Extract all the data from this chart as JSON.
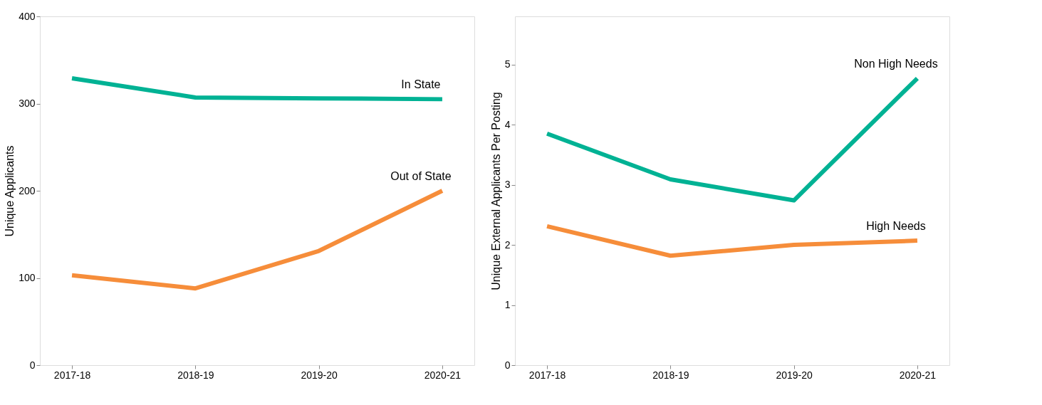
{
  "chart_data": [
    {
      "type": "line",
      "ylabel": "Unique Applicants",
      "categories": [
        "2017-18",
        "2018-19",
        "2019-20",
        "2020-21"
      ],
      "ylim": [
        0,
        400
      ],
      "yticks": [
        0,
        100,
        200,
        300,
        400
      ],
      "grid": false,
      "legend": false,
      "marker": "none",
      "line_style": "solid",
      "series": [
        {
          "name": "In State",
          "color": "#00b294",
          "values": [
            329,
            307,
            306,
            305
          ]
        },
        {
          "name": "Out of State",
          "color": "#f68d3a",
          "values": [
            103,
            88,
            131,
            200
          ]
        }
      ]
    },
    {
      "type": "line",
      "ylabel": "Unique External Applicants Per Posting",
      "categories": [
        "2017-18",
        "2018-19",
        "2019-20",
        "2020-21"
      ],
      "ylim": [
        0,
        5.8
      ],
      "yticks": [
        0,
        1,
        2,
        3,
        4,
        5
      ],
      "grid": false,
      "legend": false,
      "marker": "none",
      "line_style": "solid",
      "series": [
        {
          "name": "Non High Needs",
          "color": "#00b294",
          "values": [
            3.85,
            3.09,
            2.74,
            4.77
          ]
        },
        {
          "name": "High Needs",
          "color": "#f68d3a",
          "values": [
            2.31,
            1.82,
            2.0,
            2.07
          ]
        }
      ]
    }
  ]
}
